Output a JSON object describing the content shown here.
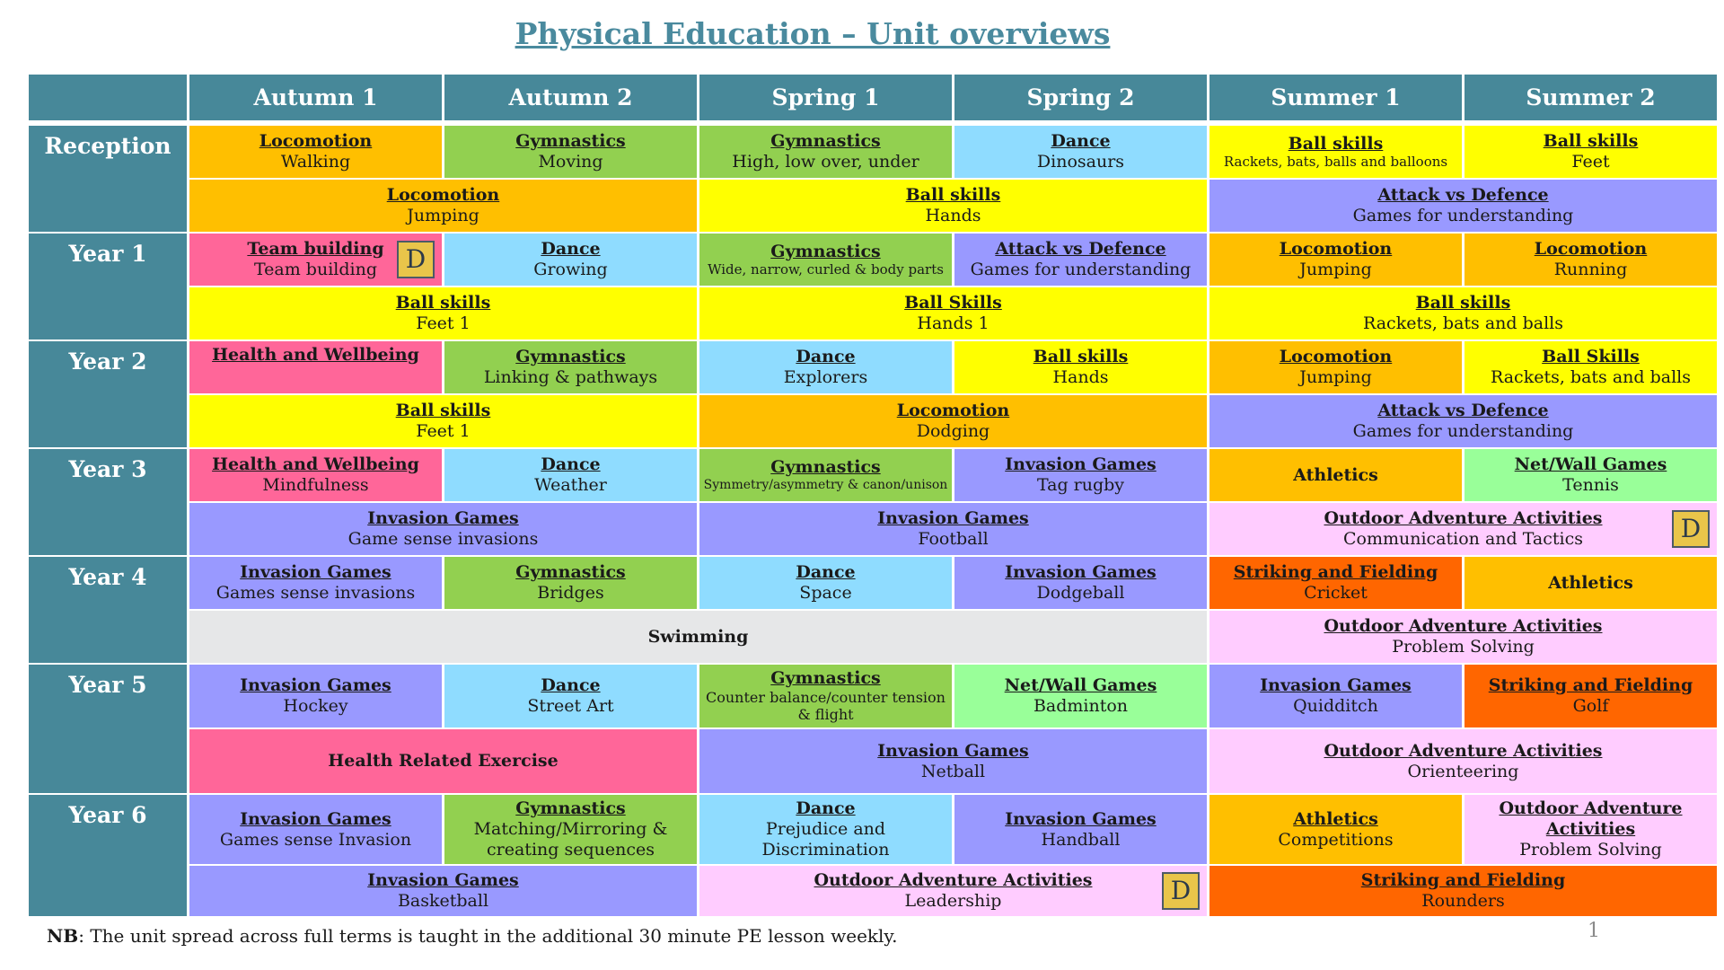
{
  "title": "Physical Education – Unit overviews",
  "terms": [
    "Autumn 1",
    "Autumn 2",
    "Spring 1",
    "Spring 2",
    "Summer 1",
    "Summer 2"
  ],
  "years": [
    "Reception",
    "Year 1",
    "Year 2",
    "Year 3",
    "Year 4",
    "Year 5",
    "Year 6"
  ],
  "badge_letter": "D",
  "cells": {
    "rec_a": [
      {
        "h": "Locomotion",
        "s": "Walking"
      },
      {
        "h": "Gymnastics",
        "s": "Moving"
      },
      {
        "h": "Gymnastics",
        "s": "High, low over, under"
      },
      {
        "h": "Dance",
        "s": "Dinosaurs"
      },
      {
        "h": "Ball skills",
        "s": "Rackets, bats, balls and balloons"
      },
      {
        "h": "Ball skills",
        "s": "Feet"
      }
    ],
    "rec_b": [
      {
        "h": "Locomotion",
        "s": "Jumping"
      },
      {
        "h": "Ball skills",
        "s": "Hands"
      },
      {
        "h": "Attack vs Defence",
        "s": "Games for understanding"
      }
    ],
    "y1_a": [
      {
        "h": "Team building",
        "s": "Team building"
      },
      {
        "h": "Dance",
        "s": "Growing"
      },
      {
        "h": "Gymnastics",
        "s": "Wide, narrow, curled & body parts"
      },
      {
        "h": "Attack vs Defence",
        "s": "Games for understanding"
      },
      {
        "h": "Locomotion",
        "s": "Jumping"
      },
      {
        "h": "Locomotion",
        "s": "Running"
      }
    ],
    "y1_b": [
      {
        "h": "Ball skills",
        "s": "Feet 1"
      },
      {
        "h": "Ball Skills",
        "s": "Hands 1"
      },
      {
        "h": "Ball skills",
        "s": "Rackets, bats and balls"
      }
    ],
    "y2_a": [
      {
        "h": "Health and Wellbeing",
        "s": ""
      },
      {
        "h": "Gymnastics",
        "s": "Linking & pathways"
      },
      {
        "h": "Dance",
        "s": "Explorers"
      },
      {
        "h": "Ball skills",
        "s": "Hands"
      },
      {
        "h": "Locomotion",
        "s": "Jumping"
      },
      {
        "h": "Ball Skills",
        "s": "Rackets, bats and balls"
      }
    ],
    "y2_b": [
      {
        "h": "Ball skills",
        "s": "Feet 1"
      },
      {
        "h": "Locomotion",
        "s": "Dodging"
      },
      {
        "h": "Attack vs Defence",
        "s": "Games for understanding"
      }
    ],
    "y3_a": [
      {
        "h": "Health and Wellbeing",
        "s": "Mindfulness"
      },
      {
        "h": "Dance",
        "s": "Weather"
      },
      {
        "h": "Gymnastics",
        "s": "Symmetry/asymmetry & canon/unison"
      },
      {
        "h": "Invasion Games",
        "s": "Tag rugby"
      },
      {
        "p": "Athletics"
      },
      {
        "h": "Net/Wall Games",
        "s": "Tennis"
      }
    ],
    "y3_b": [
      {
        "h": "Invasion Games",
        "s": "Game sense invasions"
      },
      {
        "h": "Invasion Games",
        "s": "Football"
      },
      {
        "h": "Outdoor Adventure Activities",
        "s": "Communication and Tactics"
      }
    ],
    "y4_a": [
      {
        "h": "Invasion Games",
        "s": "Games sense invasions"
      },
      {
        "h": "Gymnastics",
        "s": "Bridges"
      },
      {
        "h": "Dance",
        "s": "Space"
      },
      {
        "h": "Invasion Games",
        "s": "Dodgeball"
      },
      {
        "h": "Striking and Fielding",
        "s": "Cricket"
      },
      {
        "p": "Athletics"
      }
    ],
    "y4_b": [
      {
        "p": "Swimming"
      },
      {
        "h": "Outdoor Adventure Activities",
        "s": "Problem Solving"
      }
    ],
    "y5_a": [
      {
        "h": "Invasion Games",
        "s": "Hockey"
      },
      {
        "h": "Dance",
        "s": "Street Art"
      },
      {
        "h": "Gymnastics",
        "s": "Counter balance/counter tension & flight"
      },
      {
        "h": "Net/Wall Games",
        "s": "Badminton"
      },
      {
        "h": "Invasion Games",
        "s": "Quidditch"
      },
      {
        "h": "Striking and Fielding",
        "s": "Golf"
      }
    ],
    "y5_b": [
      {
        "p": "Health Related Exercise"
      },
      {
        "h": "Invasion Games",
        "s": "Netball"
      },
      {
        "h": "Outdoor Adventure Activities",
        "s": "Orienteering"
      }
    ],
    "y6_a": [
      {
        "h": "Invasion Games",
        "s": "Games sense Invasion"
      },
      {
        "h": "Gymnastics",
        "s": "Matching/Mirroring & creating sequences"
      },
      {
        "h": "Dance",
        "s": "Prejudice and Discrimination"
      },
      {
        "h": "Invasion Games",
        "s": "Handball"
      },
      {
        "h": "Athletics",
        "s": "Competitions"
      },
      {
        "h": "Outdoor Adventure Activities",
        "s": "Problem Solving"
      }
    ],
    "y6_b": [
      {
        "h": "Invasion Games",
        "s": "Basketball"
      },
      {
        "h": "Outdoor Adventure Activities",
        "s": "Leadership"
      },
      {
        "h": "Striking and Fielding",
        "s": "Rounders"
      }
    ]
  },
  "note_bold": "NB",
  "note_text": ": The unit spread across full terms is taught in the additional 30 minute PE lesson weekly.",
  "page_number": "1",
  "colors": {
    "header": "#478899",
    "title": "#4a8a9e",
    "locomotion": "#ffbf00",
    "gymnastics": "#92d050",
    "dance": "#8fdcff",
    "ball_skills": "#ffff00",
    "invasion": "#9999ff",
    "health": "#ff6699",
    "net_wall": "#99ff99",
    "outdoor": "#ffccff",
    "striking": "#ff6600",
    "swimming": "#e6e7e8",
    "badge": "#e9c54a"
  }
}
